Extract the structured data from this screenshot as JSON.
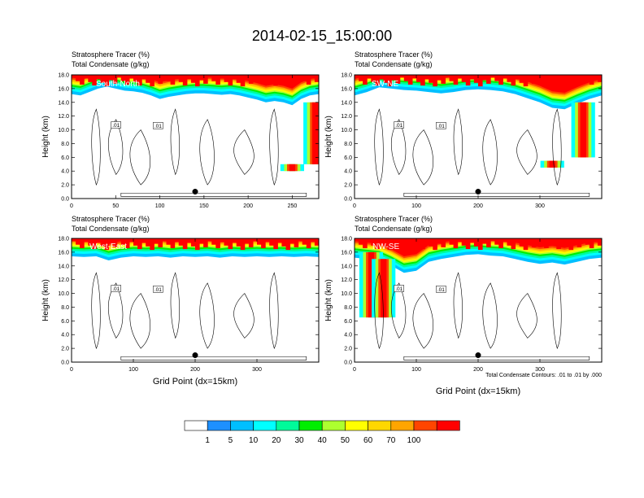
{
  "figure_title": "2014-02-15_15:00:00",
  "contour_note": "Total Condensate Contours: .01 to .01 by .000",
  "contour_label": ".01",
  "colorbar": {
    "ticks": [
      "1",
      "5",
      "10",
      "20",
      "30",
      "40",
      "50",
      "60",
      "70",
      "100"
    ],
    "colors": [
      "#ffffff",
      "#1e90ff",
      "#00bfff",
      "#00ffff",
      "#00fa9a",
      "#00ee00",
      "#adff2f",
      "#ffff00",
      "#ffd700",
      "#ffa500",
      "#ff4500",
      "#ff0000"
    ]
  },
  "chart_data": [
    {
      "type": "heatmap",
      "panel": "South-North",
      "title": "Stratosphere Tracer   (%)",
      "subtitle": "Total Condensate   (g/kg)",
      "xlabel": "",
      "ylabel": "Height (km)",
      "xlim": [
        0,
        280
      ],
      "ylim": [
        0,
        18
      ],
      "xticks": [
        "0",
        "50",
        "100",
        "150",
        "200",
        "250"
      ],
      "yticks": [
        "0.0",
        "2.0",
        "4.0",
        "6.0",
        "8.0",
        "10.0",
        "12.0",
        "14.0",
        "16.0",
        "18.0"
      ],
      "tracer_front_km": [
        [
          0,
          15.2
        ],
        [
          10,
          15.0
        ],
        [
          20,
          15.5
        ],
        [
          30,
          16.0
        ],
        [
          40,
          16.3
        ],
        [
          50,
          16.0
        ],
        [
          60,
          15.7
        ],
        [
          70,
          15.6
        ],
        [
          80,
          15.4
        ],
        [
          90,
          15.0
        ],
        [
          100,
          14.5
        ],
        [
          110,
          14.8
        ],
        [
          120,
          15.0
        ],
        [
          130,
          15.2
        ],
        [
          140,
          15.3
        ],
        [
          150,
          15.3
        ],
        [
          160,
          15.2
        ],
        [
          170,
          15.1
        ],
        [
          180,
          15.2
        ],
        [
          190,
          15.0
        ],
        [
          200,
          14.7
        ],
        [
          210,
          14.4
        ],
        [
          220,
          14.0
        ],
        [
          230,
          14.2
        ],
        [
          240,
          14.0
        ],
        [
          250,
          13.6
        ],
        [
          260,
          14.5
        ],
        [
          270,
          15.0
        ],
        [
          280,
          15.2
        ]
      ],
      "intrusions": [
        {
          "x": 276,
          "depth_km": [
            5,
            14
          ]
        },
        {
          "x": 250,
          "depth_km": [
            4,
            5
          ]
        }
      ],
      "surface_marker_x": 140
    },
    {
      "type": "heatmap",
      "panel": "SW-NE",
      "title": "Stratosphere Tracer   (%)",
      "subtitle": "Total Condensate   (g/kg)",
      "xlabel": "",
      "ylabel": "Height (km)",
      "xlim": [
        0,
        400
      ],
      "ylim": [
        0,
        18
      ],
      "xticks": [
        "0",
        "100",
        "200",
        "300"
      ],
      "yticks": [
        "0.0",
        "2.0",
        "4.0",
        "6.0",
        "8.0",
        "10.0",
        "12.0",
        "14.0",
        "16.0",
        "18.0"
      ],
      "tracer_front_km": [
        [
          0,
          15.0
        ],
        [
          20,
          15.5
        ],
        [
          40,
          16.2
        ],
        [
          60,
          16.0
        ],
        [
          80,
          15.8
        ],
        [
          100,
          15.7
        ],
        [
          120,
          15.5
        ],
        [
          140,
          15.3
        ],
        [
          160,
          15.5
        ],
        [
          180,
          15.8
        ],
        [
          200,
          15.9
        ],
        [
          220,
          15.8
        ],
        [
          240,
          15.6
        ],
        [
          260,
          15.2
        ],
        [
          280,
          14.6
        ],
        [
          300,
          14.0
        ],
        [
          320,
          13.2
        ],
        [
          340,
          13.0
        ],
        [
          360,
          13.8
        ],
        [
          380,
          14.5
        ],
        [
          400,
          15.0
        ]
      ],
      "intrusions": [
        {
          "x": 370,
          "depth_km": [
            6,
            14
          ]
        },
        {
          "x": 320,
          "depth_km": [
            4.5,
            5.5
          ]
        }
      ],
      "surface_marker_x": 200
    },
    {
      "type": "heatmap",
      "panel": "West-East",
      "title": "Stratosphere Tracer   (%)",
      "subtitle": "Total Condensate   (g/kg)",
      "xlabel": "Grid Point (dx=15km)",
      "ylabel": "Height (km)",
      "xlim": [
        0,
        400
      ],
      "ylim": [
        0,
        18
      ],
      "xticks": [
        "0",
        "100",
        "200",
        "300"
      ],
      "yticks": [
        "0.0",
        "2.0",
        "4.0",
        "6.0",
        "8.0",
        "10.0",
        "12.0",
        "14.0",
        "16.0",
        "18.0"
      ],
      "tracer_front_km": [
        [
          0,
          15.4
        ],
        [
          20,
          15.3
        ],
        [
          40,
          15.4
        ],
        [
          60,
          14.8
        ],
        [
          80,
          15.2
        ],
        [
          100,
          15.4
        ],
        [
          120,
          15.3
        ],
        [
          140,
          15.4
        ],
        [
          160,
          15.2
        ],
        [
          180,
          15.4
        ],
        [
          200,
          15.3
        ],
        [
          220,
          15.4
        ],
        [
          240,
          15.2
        ],
        [
          260,
          15.4
        ],
        [
          280,
          15.3
        ],
        [
          300,
          15.4
        ],
        [
          320,
          15.3
        ],
        [
          340,
          15.4
        ],
        [
          360,
          15.3
        ],
        [
          380,
          15.4
        ],
        [
          400,
          15.3
        ]
      ],
      "intrusions": [],
      "surface_marker_x": 200
    },
    {
      "type": "heatmap",
      "panel": "NW-SE",
      "title": "Stratosphere Tracer   (%)",
      "subtitle": "Total Condensate   (g/kg)",
      "xlabel": "Grid Point (dx=15km)",
      "ylabel": "Height (km)",
      "xlim": [
        0,
        400
      ],
      "ylim": [
        0,
        18
      ],
      "xticks": [
        "0",
        "100",
        "200",
        "300"
      ],
      "yticks": [
        "0.0",
        "2.0",
        "4.0",
        "6.0",
        "8.0",
        "10.0",
        "12.0",
        "14.0",
        "16.0",
        "18.0"
      ],
      "tracer_front_km": [
        [
          0,
          15.2
        ],
        [
          20,
          15.0
        ],
        [
          40,
          14.8
        ],
        [
          60,
          14.0
        ],
        [
          80,
          13.0
        ],
        [
          100,
          13.3
        ],
        [
          120,
          14.6
        ],
        [
          140,
          15.0
        ],
        [
          160,
          15.3
        ],
        [
          180,
          15.6
        ],
        [
          200,
          15.7
        ],
        [
          220,
          15.5
        ],
        [
          240,
          15.4
        ],
        [
          260,
          15.0
        ],
        [
          280,
          14.6
        ],
        [
          300,
          14.3
        ],
        [
          320,
          14.5
        ],
        [
          340,
          14.2
        ],
        [
          360,
          14.6
        ],
        [
          380,
          15.0
        ],
        [
          400,
          15.2
        ]
      ],
      "intrusions": [
        {
          "x": 27,
          "depth_km": [
            6.5,
            16
          ]
        },
        {
          "x": 47,
          "depth_km": [
            6.5,
            15
          ]
        }
      ],
      "surface_marker_x": 200
    }
  ]
}
